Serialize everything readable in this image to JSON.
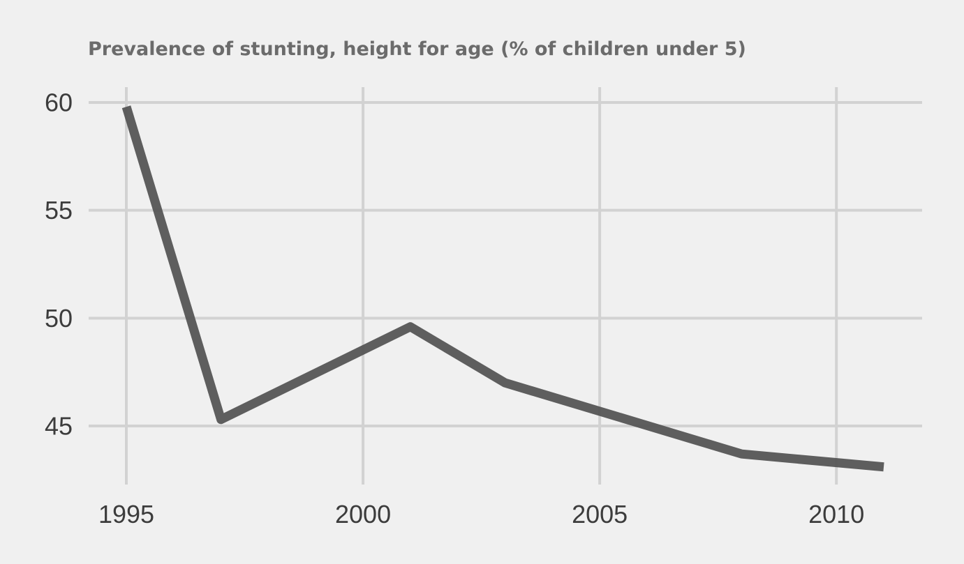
{
  "chart_data": {
    "type": "line",
    "title": "Prevalence of stunting, height for age (% of children under 5)",
    "xlabel": "",
    "ylabel": "",
    "x": [
      1995,
      1997,
      2001,
      2003,
      2008,
      2011
    ],
    "series": [
      {
        "values": [
          59.8,
          45.3,
          49.6,
          47.0,
          43.7,
          43.1
        ]
      }
    ],
    "xlim": [
      1995,
      2011
    ],
    "ylim": [
      43,
      60
    ],
    "x_ticks": [
      1995,
      2000,
      2005,
      2010
    ],
    "y_ticks": [
      45,
      50,
      55,
      60
    ],
    "x_tick_labels": [
      "1995",
      "2000",
      "2005",
      "2010"
    ],
    "y_tick_labels": [
      "45",
      "50",
      "55",
      "60"
    ],
    "grid": true,
    "legend": "none",
    "colors": {
      "background": "#f0f0f0",
      "gridline": "#d2d2d2",
      "line": "#555555",
      "title": "#6b6b6b",
      "tick_label": "#3c3c3c"
    }
  }
}
